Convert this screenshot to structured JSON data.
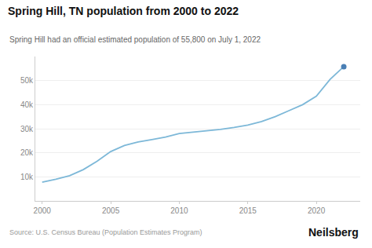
{
  "chart_data": {
    "type": "line",
    "title": "Spring Hill, TN population from 2000 to 2022",
    "subtitle": "Spring Hill had an official estimated population of 55,800 on July 1, 2022",
    "annotations": [
      "Source: U.S. Census Bureau (Population Estimates Program)",
      "Neilsberg"
    ],
    "x": [
      2000,
      2001,
      2002,
      2003,
      2004,
      2005,
      2006,
      2007,
      2008,
      2009,
      2010,
      2011,
      2012,
      2013,
      2014,
      2015,
      2016,
      2017,
      2018,
      2019,
      2020,
      2021,
      2022
    ],
    "series": [
      {
        "type": "line",
        "color": "#7db8d8",
        "values": [
          7800,
          9000,
          10500,
          13000,
          16500,
          20500,
          23000,
          24500,
          25500,
          26500,
          28000,
          28500,
          29000,
          29700,
          30500,
          31500,
          33000,
          35000,
          37500,
          40000,
          43500,
          50500,
          55800
        ]
      },
      {
        "type": "scatter",
        "color": "#4a7fb5",
        "values": [
          null,
          null,
          null,
          null,
          null,
          null,
          null,
          null,
          null,
          null,
          null,
          null,
          null,
          null,
          null,
          null,
          null,
          null,
          null,
          null,
          null,
          null,
          55800
        ]
      }
    ],
    "xlim": [
      1999.5,
      2023.2
    ],
    "xticks": [
      2000,
      2005,
      2010,
      2015,
      2020
    ],
    "ylim": [
      0,
      60000
    ],
    "yticks": [
      {
        "value": 10000,
        "label": "10k"
      },
      {
        "value": 20000,
        "label": "20k"
      },
      {
        "value": 30000,
        "label": "30k"
      },
      {
        "value": 40000,
        "label": "40k"
      },
      {
        "value": 50000,
        "label": "50k"
      }
    ],
    "grid": "y"
  }
}
